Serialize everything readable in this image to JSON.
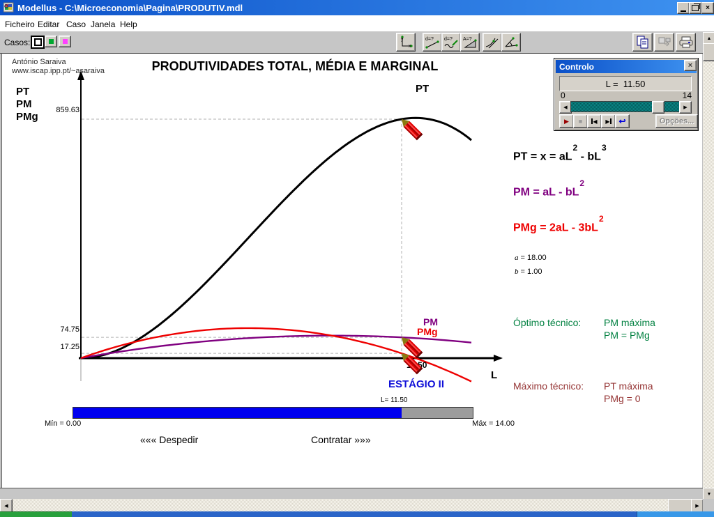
{
  "window": {
    "title": "Modellus - C:\\Microeconomia\\Pagina\\PRODUTIV.mdl"
  },
  "menu": {
    "items": [
      "Ficheiro",
      "Editar",
      "Caso",
      "Janela",
      "Help"
    ]
  },
  "toolbar": {
    "casos_label": "Casos:",
    "case_colors": [
      "#000000",
      "#00a830",
      "#ff40ff"
    ],
    "measure_icons": [
      "graph-axes",
      "measure-distance",
      "measure-curve-distance",
      "measure-area",
      "tangent",
      "angle"
    ],
    "right_icons": [
      "copy",
      "export",
      "print"
    ]
  },
  "author": {
    "name": "António Saraiva",
    "url": "www.iscap.ipp.pt/~asaraiva"
  },
  "graph": {
    "title": "PRODUTIVIDADES TOTAL, MÉDIA E MARGINAL",
    "legend": [
      "PT",
      "PM",
      "PMg"
    ],
    "y_label_pt": "859.63",
    "y_label_pm": "74.75",
    "y_label_pmg": "17.25",
    "x_label_current": "11.50",
    "axis_label": "L",
    "curve_label_pt": "PT",
    "curve_label_pm": "PM",
    "curve_label_pmg": "PMg",
    "stage": "ESTÁGIO II",
    "stage_sub": "L= 11.50"
  },
  "formulas": {
    "pt": {
      "pre": "PT = x = aL",
      "sup1": "2",
      "mid": " - bL",
      "sup2": "3",
      "color": "#000000"
    },
    "pm": {
      "pre": "PM = aL - bL",
      "sup1": "2",
      "color": "#800080"
    },
    "pmg": {
      "pre": "PMg = 2aL - 3bL",
      "sup1": "2",
      "color": "#ee0000"
    },
    "param_a_name": "a",
    "param_a_value": " = 18.00",
    "param_b_name": "b",
    "param_b_value": " = 1.00"
  },
  "notes": {
    "optimo_label": "Óptimo técnico:",
    "optimo_line1": "PM máxima",
    "optimo_line2": "PM = PMg",
    "optimo_color": "#008040",
    "maximo_label": "Máximo técnico:",
    "maximo_line1": "PT máxima",
    "maximo_line2": "PMg = 0",
    "maximo_color": "#953434"
  },
  "hire_bar": {
    "pointer_label": "L= 11.50",
    "fraction": 0.8214,
    "min_label": "Mín = 0.00",
    "max_label": "Máx = 14.00",
    "left_action": "««« Despedir",
    "right_action": "Contratar »»»",
    "fill_color": "#0000f0",
    "rest_color": "#9c9c9c"
  },
  "controlo": {
    "title": "Controlo",
    "display": "L =  11.50",
    "min": "0",
    "max": "14",
    "fraction": 0.8214,
    "options_label": "Opções..."
  },
  "chart_data": {
    "type": "line",
    "title": "PRODUTIVIDADES TOTAL, MÉDIA E MARGINAL",
    "xlabel": "L",
    "x_range": [
      0,
      14
    ],
    "params": {
      "a": 18,
      "b": 1
    },
    "current_L": 11.5,
    "series": [
      {
        "name": "PT",
        "color": "#000000",
        "formula": "a*L^2 - b*L^3",
        "value_at_current": 859.63,
        "values": [
          0,
          17,
          64,
          135,
          224,
          325,
          432,
          539,
          640,
          729,
          800,
          847,
          864,
          845,
          784
        ]
      },
      {
        "name": "PM",
        "color": "#800080",
        "formula": "a*L - b*L^2",
        "value_at_current": 74.75,
        "values": [
          0,
          17,
          32,
          45,
          56,
          65,
          72,
          77,
          80,
          81,
          80,
          77,
          72,
          65,
          56
        ]
      },
      {
        "name": "PMg",
        "color": "#ee0000",
        "formula": "2*a*L - 3*b*L^2",
        "value_at_current": 17.25,
        "values": [
          0,
          33,
          60,
          81,
          96,
          105,
          108,
          105,
          96,
          81,
          60,
          33,
          0,
          -39,
          -84
        ]
      }
    ],
    "x_samples": [
      0,
      1,
      2,
      3,
      4,
      5,
      6,
      7,
      8,
      9,
      10,
      11,
      12,
      13,
      14
    ],
    "y_axis_marks": [
      859.63,
      74.75,
      17.25
    ],
    "x_axis_marks": [
      11.5
    ],
    "grid": "dashed-guides-at-current-point",
    "legend_position": "top-left"
  }
}
